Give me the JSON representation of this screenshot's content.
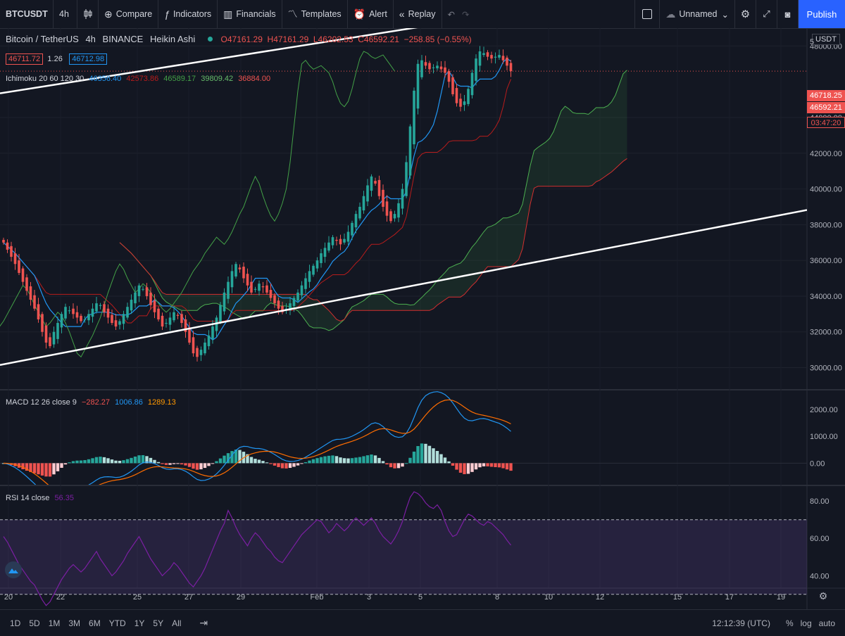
{
  "toolbar": {
    "symbol": "BTCUSDT",
    "interval": "4h",
    "compare": "Compare",
    "indicators": "Indicators",
    "financials": "Financials",
    "templates": "Templates",
    "alert": "Alert",
    "replay": "Replay",
    "layout_name": "Unnamed",
    "publish": "Publish"
  },
  "legend": {
    "title": "Bitcoin / TetherUS",
    "interval": "4h",
    "exchange": "BINANCE",
    "chart_style": "Heikin Ashi",
    "open": "O47161.29",
    "high": "H47161.29",
    "low": "L46202.53",
    "close": "C46592.21",
    "change": "−258.85 (−0.55%)",
    "bid": "46711.72",
    "spread": "1.26",
    "ask": "46712.98",
    "ichimoku_name": "Ichimoku 20 60 120 30",
    "ichimoku_values": [
      "46356.40",
      "42573.86",
      "46589.17",
      "39809.42",
      "36884.00"
    ],
    "macd_name": "MACD 12 26 close 9",
    "macd_values": [
      "−282.27",
      "1006.86",
      "1289.13"
    ],
    "rsi_name": "RSI 14 close",
    "rsi_value": "56.35"
  },
  "price_scale": {
    "currency": "USDT",
    "tag_close_a": "46718.25",
    "tag_close_b": "46592.21",
    "countdown": "03:47:20",
    "top_partial": "5"
  },
  "bottom": {
    "timeframes": [
      "1D",
      "5D",
      "1M",
      "3M",
      "6M",
      "YTD",
      "1Y",
      "5Y",
      "All"
    ],
    "clock": "12:12:39 (UTC)",
    "percent": "%",
    "log": "log",
    "auto": "auto"
  },
  "colors": {
    "background": "#131722",
    "up": "#26a69a",
    "down": "#ef5350",
    "tenkan": "#2196f3",
    "kijun": "#b71c1c",
    "chikou": "#43a047",
    "span_a": "#4caf50",
    "span_b": "#d32f2f",
    "macd": "#2196f3",
    "signal": "#ff6d00",
    "rsi": "#7b1fa2"
  },
  "chart_data": [
    {
      "type": "candlestick",
      "style": "Heikin Ashi",
      "x_ticks": [
        "20",
        "22",
        "25",
        "27",
        "29",
        "Feb",
        "3",
        "5",
        "8",
        "10",
        "12",
        "15",
        "17",
        "19"
      ],
      "y_ticks": [
        30000,
        32000,
        34000,
        36000,
        38000,
        40000,
        42000,
        44000,
        48000
      ],
      "ylim": [
        28800,
        49000
      ],
      "candle_closes": [
        37000,
        36600,
        36200,
        35800,
        35300,
        34800,
        34300,
        33800,
        33300,
        32700,
        32000,
        31400,
        31200,
        32000,
        32500,
        33000,
        33400,
        33200,
        33000,
        32800,
        32600,
        32700,
        33000,
        33300,
        33600,
        33500,
        33100,
        32800,
        32500,
        32300,
        32600,
        33000,
        33400,
        33800,
        34200,
        34600,
        34400,
        34000,
        33500,
        33100,
        32700,
        32300,
        32500,
        32800,
        33100,
        32900,
        32500,
        32000,
        31400,
        30800,
        30600,
        31000,
        31400,
        31800,
        32300,
        32800,
        33500,
        34200,
        34800,
        35400,
        35800,
        35500,
        35000,
        34600,
        34200,
        34400,
        34700,
        34500,
        34200,
        33900,
        33600,
        33300,
        33100,
        33300,
        33600,
        33900,
        34200,
        34600,
        35000,
        35400,
        35700,
        36000,
        36400,
        36700,
        37000,
        37300,
        37100,
        36900,
        37200,
        37600,
        38100,
        38600,
        39000,
        39600,
        40200,
        40700,
        40300,
        39600,
        39000,
        38500,
        38200,
        38600,
        39200,
        40000,
        41500,
        43500,
        45500,
        47000,
        47200,
        46900,
        46700,
        46800,
        46900,
        46700,
        46500,
        46000,
        45300,
        44800,
        44600,
        44900,
        45600,
        46500,
        47300,
        47700,
        47600,
        47400,
        47300,
        47400,
        47500,
        47200,
        46900,
        46592
      ],
      "series": [
        {
          "name": "Ichimoku Tenkan",
          "values": [
            46356.4
          ]
        },
        {
          "name": "Ichimoku Kijun",
          "values": [
            42573.86
          ]
        },
        {
          "name": "Ichimoku Chikou",
          "values": [
            46589.17
          ]
        },
        {
          "name": "Ichimoku Span A",
          "values": [
            39809.42
          ]
        },
        {
          "name": "Ichimoku Span B",
          "values": [
            36884.0
          ]
        }
      ],
      "annotations": [
        "upper trendline",
        "lower trendline"
      ]
    },
    {
      "type": "bar",
      "name": "MACD 12 26 close 9",
      "y_ticks": [
        0,
        1000,
        2000
      ],
      "ylim": [
        -800,
        2700
      ],
      "values": {
        "histogram": -282.27,
        "macd": 1006.86,
        "signal": 1289.13
      }
    },
    {
      "type": "line",
      "name": "RSI 14 close",
      "y_ticks": [
        40,
        60,
        80
      ],
      "ylim": [
        22,
        88
      ],
      "bands": [
        30,
        70
      ],
      "values": [
        61,
        58,
        54,
        50,
        46,
        43,
        40,
        37,
        35,
        31,
        27,
        24,
        26,
        30,
        34,
        38,
        41,
        44,
        46,
        44,
        42,
        44,
        47,
        50,
        53,
        49,
        46,
        43,
        40,
        42,
        45,
        48,
        52,
        55,
        58,
        61,
        57,
        53,
        49,
        46,
        43,
        40,
        42,
        44,
        47,
        45,
        42,
        39,
        36,
        34,
        37,
        40,
        44,
        49,
        54,
        59,
        64,
        68,
        75,
        71,
        66,
        62,
        59,
        56,
        60,
        63,
        61,
        58,
        55,
        53,
        50,
        48,
        47,
        50,
        53,
        56,
        59,
        62,
        64,
        66,
        68,
        70,
        69,
        66,
        63,
        65,
        68,
        66,
        64,
        66,
        69,
        71,
        69,
        67,
        69,
        71,
        68,
        64,
        61,
        59,
        57,
        60,
        64,
        69,
        76,
        82,
        85,
        84,
        82,
        79,
        77,
        76,
        78,
        75,
        69,
        64,
        61,
        62,
        66,
        70,
        73,
        72,
        70,
        68,
        67,
        69,
        68,
        66,
        64,
        62,
        59,
        56.35
      ]
    }
  ]
}
